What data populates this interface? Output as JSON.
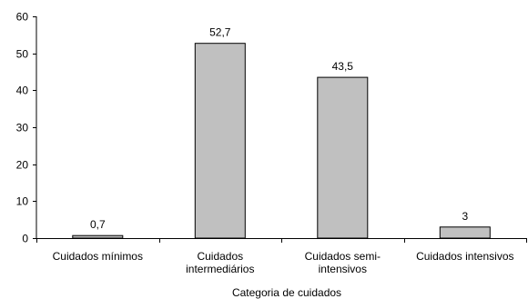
{
  "chart_data": {
    "type": "bar",
    "categories": [
      [
        "Cuidados mínimos"
      ],
      [
        "Cuidados",
        "intermediários"
      ],
      [
        "Cuidados semi-",
        "intensivos"
      ],
      [
        "Cuidados intensivos"
      ]
    ],
    "values": [
      0.7,
      52.7,
      43.5,
      3
    ],
    "data_labels": [
      "0,7",
      "52,7",
      "43,5",
      "3"
    ],
    "xlabel": "Categoria de cuidados",
    "ylabel": "",
    "ylim": [
      0,
      60
    ],
    "yticks": [
      0,
      10,
      20,
      30,
      40,
      50,
      60
    ],
    "grid": false,
    "colors": {
      "bar_fill": "#c0c0c0",
      "bar_stroke": "#000000",
      "axis": "#000000"
    }
  }
}
